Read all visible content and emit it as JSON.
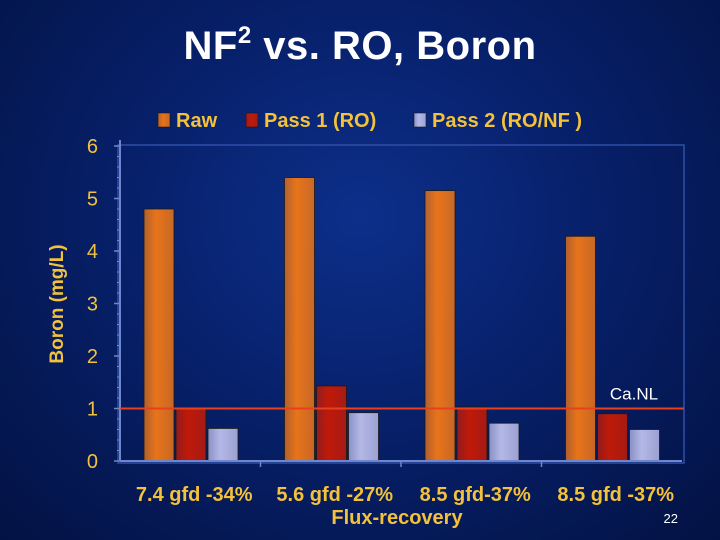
{
  "slide": {
    "title_prefix": "NF",
    "title_superscript": "2",
    "title_suffix": " vs. RO, Boron",
    "page_number": "22"
  },
  "chart_data": {
    "type": "bar",
    "title": "",
    "xlabel": "Flux-recovery",
    "ylabel": "Boron (mg/L)",
    "ylim": [
      0,
      6
    ],
    "yticks": [
      0,
      1,
      2,
      3,
      4,
      5,
      6
    ],
    "categories": [
      "7.4 gfd -34%",
      "5.6 gfd -27%",
      "8.5 gfd-37%",
      "8.5 gfd -37%"
    ],
    "series": [
      {
        "name": "Raw",
        "values": [
          4.8,
          5.4,
          5.15,
          4.28
        ],
        "color": "#e8741a"
      },
      {
        "name": "Pass 1 (RO)",
        "values": [
          1.0,
          1.43,
          1.03,
          0.9
        ],
        "color": "#c01a08"
      },
      {
        "name": "Pass 2 (RO/NF )",
        "values": [
          0.62,
          0.92,
          0.72,
          0.6
        ],
        "color": "#b4b8e6"
      }
    ],
    "reference_line": {
      "value": 1.0,
      "label": "Ca.NL",
      "color": "#e8401c"
    },
    "legend": "top",
    "grid": false,
    "colors": {
      "axis": "#6f86c8",
      "text": "#f3c23a",
      "background": "#0a2270"
    }
  }
}
